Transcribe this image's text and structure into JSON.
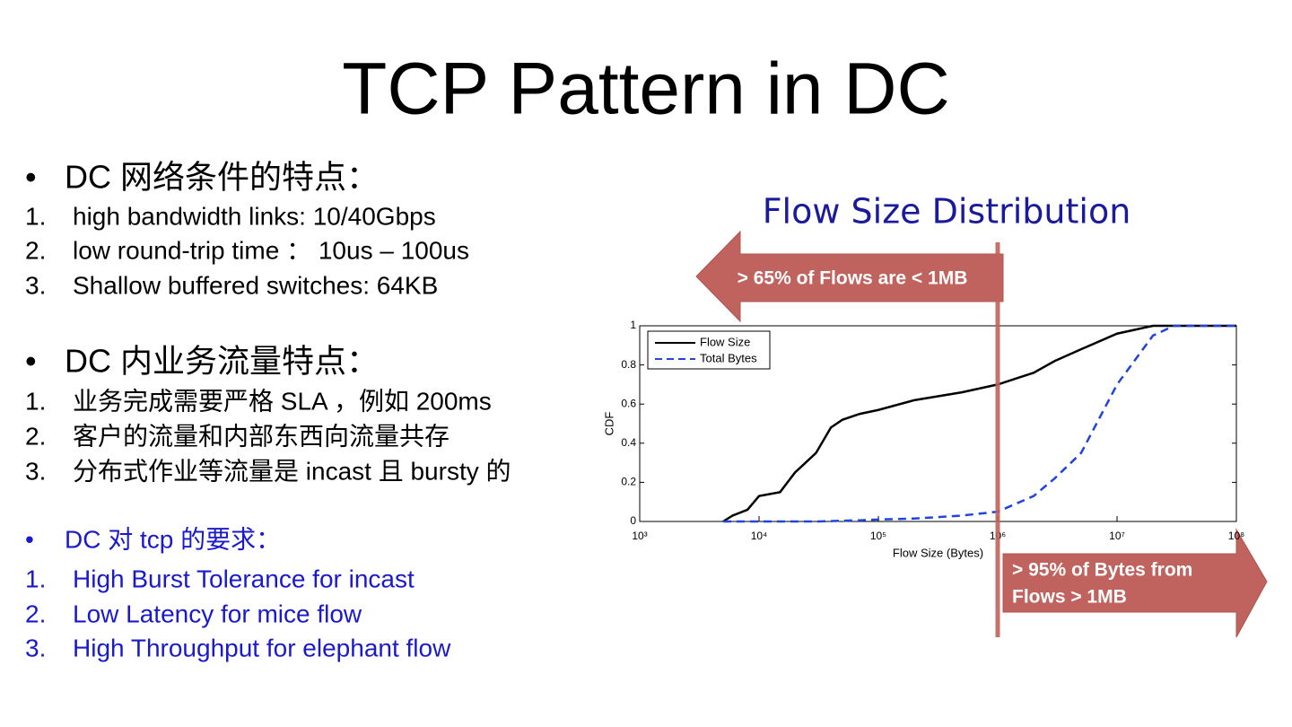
{
  "slide": {
    "title": "TCP Pattern in DC",
    "sections": [
      {
        "heading": "DC  网络条件的特点：",
        "items": [
          {
            "num": "1.",
            "text": "high bandwidth links: 10/40Gbps"
          },
          {
            "num": "2.",
            "text": "low round-trip time  ：  10us – 100us"
          },
          {
            "num": "3.",
            "text": "Shallow buffered switches: 64KB"
          }
        ]
      },
      {
        "heading": "DC 内业务流量特点：",
        "items": [
          {
            "num": "1.",
            "text": "业务完成需要严格 SLA ，例如 200ms"
          },
          {
            "num": "2.",
            "text": "客户的流量和内部东西向流量共存"
          },
          {
            "num": "3.",
            "text": "分布式作业等流量是 incast 且 bursty 的"
          }
        ]
      },
      {
        "heading": "DC 对 tcp 的要求：",
        "items": [
          {
            "num": "1.",
            "text": "High Burst Tolerance for incast"
          },
          {
            "num": "2.",
            "text": "Low Latency for mice flow"
          },
          {
            "num": "3.",
            "text": "High Throughput for elephant flow"
          }
        ]
      }
    ]
  },
  "chart_data": {
    "type": "line",
    "title": "Flow Size Distribution",
    "xlabel": "Flow Size (Bytes)",
    "ylabel": "CDF",
    "xscale": "log",
    "x": [
      5000,
      6000,
      8000,
      10000,
      15000,
      20000,
      30000,
      40000,
      50000,
      70000,
      100000,
      200000,
      500000,
      1000000,
      2000000,
      3000000,
      5000000,
      10000000,
      20000000,
      30000000,
      50000000,
      100000000
    ],
    "series": [
      {
        "name": "Flow Size",
        "color": "#000000",
        "dash": false,
        "values": [
          0,
          0.03,
          0.06,
          0.13,
          0.15,
          0.25,
          0.35,
          0.48,
          0.52,
          0.55,
          0.57,
          0.62,
          0.66,
          0.7,
          0.76,
          0.82,
          0.88,
          0.96,
          1,
          1,
          1,
          1
        ]
      },
      {
        "name": "Total Bytes",
        "color": "#2244dd",
        "dash": true,
        "values": [
          0,
          0,
          0,
          0,
          0,
          0,
          0,
          0.002,
          0.004,
          0.006,
          0.01,
          0.015,
          0.03,
          0.05,
          0.13,
          0.22,
          0.35,
          0.7,
          0.95,
          1,
          1,
          1
        ]
      }
    ],
    "xlim": [
      1000,
      100000000
    ],
    "ylim": [
      0,
      1
    ],
    "xticks": [
      {
        "value": 1000,
        "label": "10³"
      },
      {
        "value": 10000,
        "label": "10⁴"
      },
      {
        "value": 100000,
        "label": "10⁵"
      },
      {
        "value": 1000000,
        "label": "10⁶"
      },
      {
        "value": 10000000,
        "label": "10⁷"
      },
      {
        "value": 100000000,
        "label": "10⁸"
      }
    ],
    "yticks": [
      0,
      0.2,
      0.4,
      0.6,
      0.8,
      1
    ],
    "legend": "upper left",
    "vline": 1000000,
    "annotations": [
      {
        "lines": [
          "> 65% of Flows are < 1MB"
        ]
      },
      {
        "lines": [
          "> 95% of Bytes from",
          "Flows > 1MB"
        ]
      }
    ]
  }
}
